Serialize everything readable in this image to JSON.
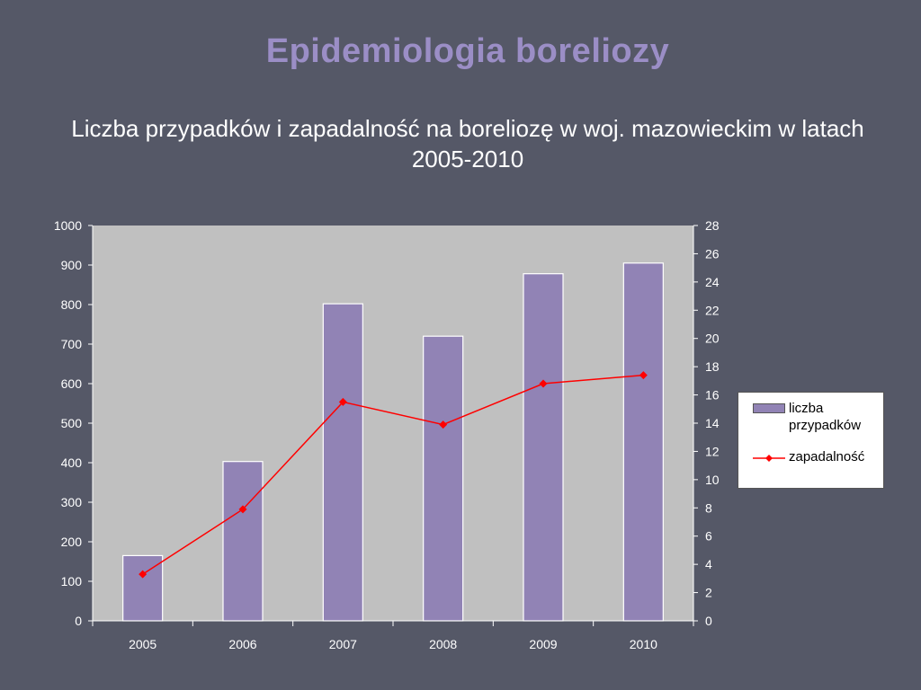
{
  "slide": {
    "title": "Epidemiologia boreliozy",
    "subtitle": "Liczba przypadków i zapadalność na boreliozę w woj. mazowieckim w latach 2005-2010"
  },
  "chart_data": {
    "type": "bar",
    "categories": [
      "2005",
      "2006",
      "2007",
      "2008",
      "2009",
      "2010"
    ],
    "series": [
      {
        "name": "liczba przypadków",
        "type": "bar",
        "axis": "left",
        "color": "#9183b5",
        "values": [
          165,
          403,
          802,
          720,
          878,
          905
        ]
      },
      {
        "name": "zapadalność",
        "type": "line",
        "axis": "right",
        "color": "#ff0000",
        "values": [
          3.3,
          7.9,
          15.5,
          13.9,
          16.8,
          17.4
        ]
      }
    ],
    "ylim_left": [
      0,
      1000
    ],
    "ylim_right": [
      0,
      28
    ],
    "yticks_left": [
      "0",
      "100",
      "200",
      "300",
      "400",
      "500",
      "600",
      "700",
      "800",
      "900",
      "1000"
    ],
    "yticks_right": [
      "0",
      "2",
      "4",
      "6",
      "8",
      "10",
      "12",
      "14",
      "16",
      "18",
      "20",
      "22",
      "24",
      "26",
      "28"
    ],
    "plot_background": "#c0c0c0",
    "legend_position": "right",
    "grid": false
  }
}
